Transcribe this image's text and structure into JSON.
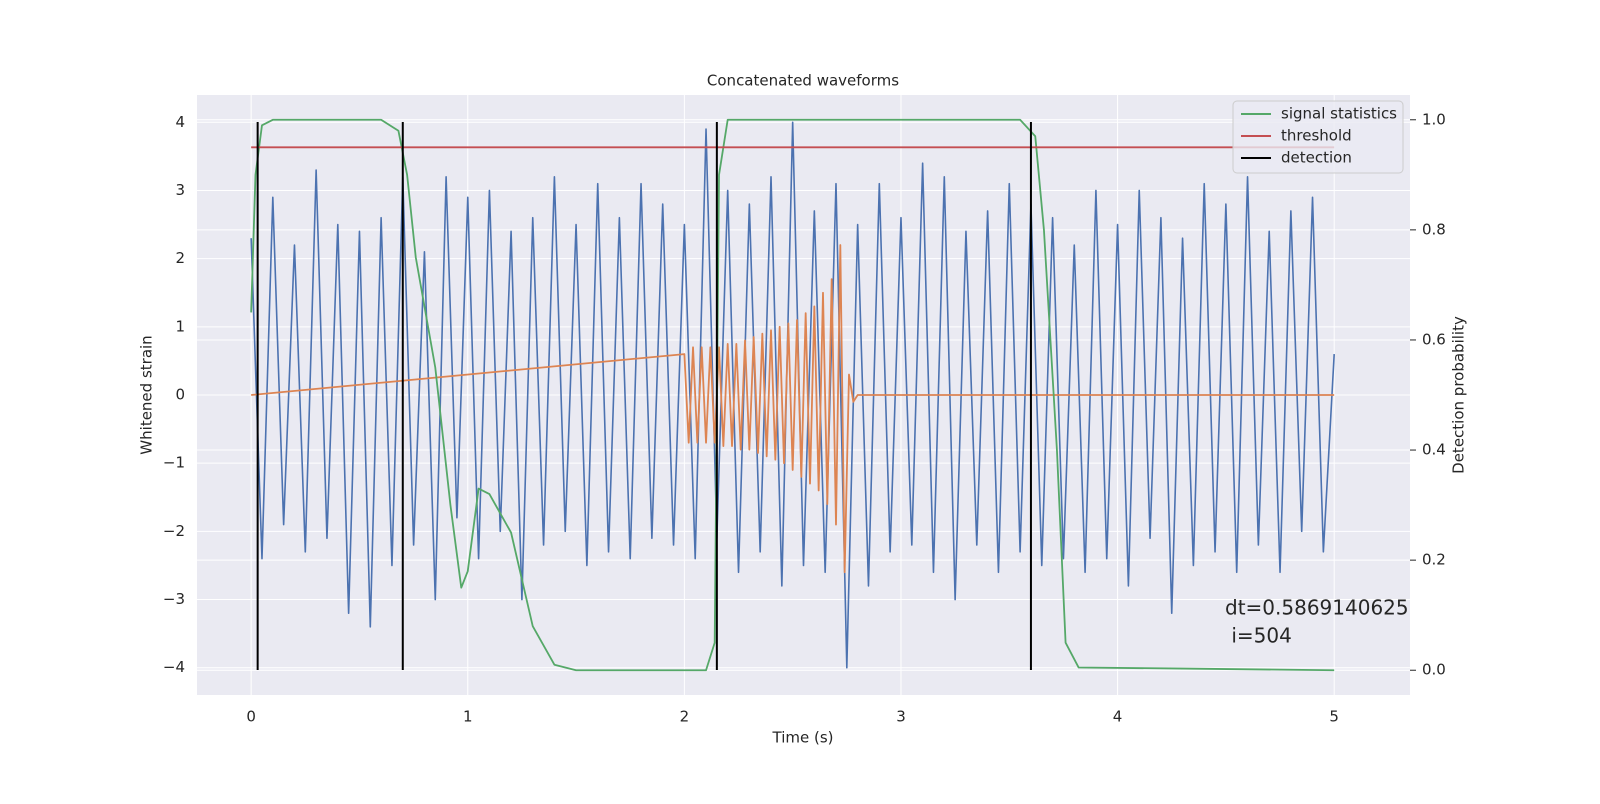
{
  "chart_data": {
    "type": "line",
    "title": "Concatenated waveforms",
    "xlabel": "Time (s)",
    "ylabel": "Whitened strain",
    "y2label": "Detection probability",
    "xlim": [
      -0.25,
      5.35
    ],
    "ylim": [
      -4.4,
      4.4
    ],
    "y2lim": [
      -0.045,
      1.045
    ],
    "xticks": [
      0,
      1,
      2,
      3,
      4,
      5
    ],
    "yticks": [
      {
        "value": -4,
        "label": "−4"
      },
      {
        "value": -3,
        "label": "−3"
      },
      {
        "value": -2,
        "label": "−2"
      },
      {
        "value": -1,
        "label": "−1"
      },
      0,
      1,
      2,
      3,
      4
    ],
    "y2ticks": [
      {
        "value": 0,
        "label": "0.0"
      },
      0.2,
      0.4,
      0.6,
      0.8,
      {
        "value": 1,
        "label": "1.0"
      }
    ],
    "grid": true,
    "legend": "upper right",
    "series": [
      {
        "color": "#4c72b0",
        "x": [
          0,
          0.05,
          0.1,
          0.15,
          0.2,
          0.25,
          0.3,
          0.35,
          0.4,
          0.45,
          0.5,
          0.55,
          0.6,
          0.65,
          0.7,
          0.75,
          0.8,
          0.85,
          0.9,
          0.95,
          1,
          1.05,
          1.1,
          1.15,
          1.2,
          1.25,
          1.3,
          1.35,
          1.4,
          1.45,
          1.5,
          1.55,
          1.6,
          1.65,
          1.7,
          1.75,
          1.8,
          1.85,
          1.9,
          1.95,
          2,
          2.05,
          2.1,
          2.15,
          2.2,
          2.25,
          2.3,
          2.35,
          2.4,
          2.45,
          2.5,
          2.55,
          2.6,
          2.65,
          2.7,
          2.75,
          2.8,
          2.85,
          2.9,
          2.95,
          3,
          3.05,
          3.1,
          3.15,
          3.2,
          3.25,
          3.3,
          3.35,
          3.4,
          3.45,
          3.5,
          3.55,
          3.6,
          3.65,
          3.7,
          3.75,
          3.8,
          3.85,
          3.9,
          3.95,
          4,
          4.05,
          4.1,
          4.15,
          4.2,
          4.25,
          4.3,
          4.35,
          4.4,
          4.45,
          4.5,
          4.55,
          4.6,
          4.65,
          4.7,
          4.75,
          4.8,
          4.85,
          4.9,
          4.95,
          5
        ],
        "values": [
          2.3,
          -2.4,
          2.9,
          -1.9,
          2.2,
          -2.3,
          3.3,
          -2.1,
          2.5,
          -3.2,
          2.4,
          -3.4,
          2.6,
          -2.5,
          3.2,
          -2.2,
          2.1,
          -3.0,
          3.2,
          -1.8,
          2.9,
          -2.4,
          3.0,
          -2.0,
          2.4,
          -3.0,
          2.6,
          -2.2,
          3.2,
          -2.0,
          2.5,
          -2.5,
          3.1,
          -2.3,
          2.6,
          -2.4,
          3.1,
          -2.1,
          2.8,
          -2.2,
          2.5,
          -2.4,
          3.9,
          -2.1,
          3.0,
          -2.6,
          2.8,
          -2.3,
          3.2,
          -2.8,
          4.0,
          -2.5,
          2.7,
          -2.6,
          3.1,
          -4.0,
          2.5,
          -2.8,
          3.1,
          -2.3,
          2.6,
          -2.2,
          3.4,
          -2.6,
          3.2,
          -3.0,
          2.4,
          -2.2,
          2.7,
          -2.6,
          3.1,
          -2.3,
          2.8,
          -2.5,
          2.6,
          -2.4,
          2.2,
          -2.6,
          3.0,
          -2.4,
          2.5,
          -2.8,
          3.0,
          -2.1,
          2.6,
          -3.2,
          2.3,
          -2.5,
          3.1,
          -2.3,
          2.8,
          -2.6,
          3.2,
          -2.2,
          2.4,
          -2.6,
          2.7,
          -2.0,
          2.9,
          -2.3,
          0.6
        ]
      },
      {
        "color": "#dd8452",
        "x": [
          0,
          2,
          2.02,
          2.04,
          2.06,
          2.08,
          2.1,
          2.12,
          2.14,
          2.16,
          2.18,
          2.2,
          2.22,
          2.24,
          2.26,
          2.28,
          2.3,
          2.32,
          2.34,
          2.36,
          2.38,
          2.4,
          2.42,
          2.44,
          2.46,
          2.48,
          2.5,
          2.52,
          2.54,
          2.56,
          2.58,
          2.6,
          2.62,
          2.64,
          2.66,
          2.68,
          2.7,
          2.72,
          2.74,
          2.76,
          2.78,
          2.8,
          5
        ],
        "values": [
          0,
          0.6,
          -0.7,
          0.7,
          -0.7,
          0.7,
          -0.7,
          0.7,
          -0.7,
          0.7,
          -0.75,
          0.75,
          -0.75,
          0.75,
          -0.8,
          0.8,
          -0.8,
          0.85,
          -0.85,
          0.9,
          -0.9,
          0.95,
          -0.95,
          1.0,
          -1.0,
          1.05,
          -1.1,
          1.1,
          -1.2,
          1.2,
          -1.3,
          1.3,
          -1.4,
          1.5,
          -1.6,
          1.7,
          -1.9,
          2.2,
          -2.6,
          0.3,
          -0.1,
          0,
          0
        ]
      },
      {
        "name": "signal statistics",
        "color": "#55a868",
        "axis": "y2",
        "x": [
          0,
          0.02,
          0.05,
          0.1,
          0.6,
          0.68,
          0.72,
          0.76,
          0.85,
          0.92,
          0.97,
          1.0,
          1.05,
          1.1,
          1.2,
          1.3,
          1.4,
          1.5,
          2.1,
          2.14,
          2.16,
          2.2,
          3.55,
          3.62,
          3.66,
          3.72,
          3.76,
          3.82,
          4.3,
          5.0
        ],
        "values": [
          0.65,
          0.9,
          0.99,
          1.0,
          1.0,
          0.98,
          0.9,
          0.75,
          0.55,
          0.3,
          0.15,
          0.18,
          0.33,
          0.32,
          0.25,
          0.08,
          0.01,
          0.0,
          0.0,
          0.05,
          0.9,
          1.0,
          1.0,
          0.97,
          0.8,
          0.4,
          0.05,
          0.005,
          0.003,
          0.0
        ]
      },
      {
        "name": "threshold",
        "color": "#c44e52",
        "axis": "y2",
        "x": [
          0,
          5
        ],
        "values": [
          0.95,
          0.95
        ]
      }
    ],
    "detection": {
      "name": "detection",
      "color": "#000000",
      "x": [
        0.03,
        0.7,
        2.15,
        3.6
      ]
    },
    "annotation": [
      "dt=0.5869140625",
      " i=504"
    ]
  }
}
